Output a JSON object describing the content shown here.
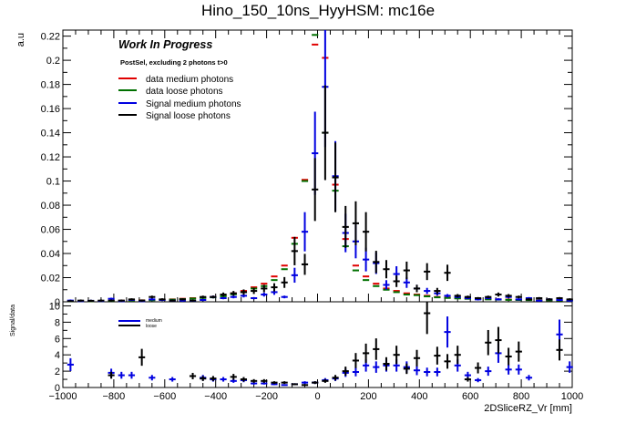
{
  "chart_data": [
    {
      "type": "scatter",
      "title": "Hino_150_10ns_HyyHSM: mc16e",
      "ylabel": "a.u",
      "xlim": [
        -1000,
        1000
      ],
      "ylim": [
        0,
        0.225
      ],
      "y_ticks": [
        "0",
        "0.02",
        "0.04",
        "0.06",
        "0.08",
        "0.1",
        "0.12",
        "0.14",
        "0.16",
        "0.18",
        "0.2",
        "0.22"
      ],
      "annotation_main": "Work In Progress",
      "annotation_sub": "PostSel, excluding 2 photons t>0",
      "legend_placement": "top-left",
      "x": [
        -970,
        -930,
        -890,
        -850,
        -810,
        -770,
        -730,
        -690,
        -650,
        -610,
        -570,
        -530,
        -490,
        -450,
        -410,
        -370,
        -330,
        -290,
        -250,
        -210,
        -170,
        -130,
        -90,
        -50,
        -10,
        30,
        70,
        110,
        150,
        190,
        230,
        270,
        310,
        350,
        390,
        430,
        470,
        510,
        550,
        590,
        630,
        670,
        710,
        750,
        790,
        830,
        870,
        910,
        950,
        990
      ],
      "series": [
        {
          "name": "data medium photons",
          "color": "#e00000",
          "y": [
            0.0005,
            0.0005,
            0.0006,
            0.0007,
            0.0008,
            0.0009,
            0.001,
            0.0012,
            0.0015,
            0.0018,
            0.002,
            0.0025,
            0.003,
            0.0035,
            0.004,
            0.005,
            0.007,
            0.009,
            0.012,
            0.015,
            0.021,
            0.03,
            0.053,
            0.101,
            0.213,
            0.202,
            0.097,
            0.052,
            0.03,
            0.021,
            0.015,
            0.011,
            0.009,
            0.007,
            0.006,
            0.005,
            0.004,
            0.0035,
            0.003,
            0.0028,
            0.0025,
            0.0022,
            0.002,
            0.0018,
            0.0016,
            0.0015,
            0.0014,
            0.0013,
            0.0012,
            0.0011
          ]
        },
        {
          "name": "data loose photons",
          "color": "#007000",
          "y": [
            0.0004,
            0.0005,
            0.0005,
            0.0006,
            0.0007,
            0.0008,
            0.0009,
            0.001,
            0.0013,
            0.0015,
            0.0018,
            0.0022,
            0.0027,
            0.0032,
            0.0037,
            0.0046,
            0.0062,
            0.008,
            0.011,
            0.013,
            0.018,
            0.027,
            0.048,
            0.1,
            0.221,
            0.14,
            0.092,
            0.046,
            0.026,
            0.018,
            0.013,
            0.01,
            0.008,
            0.006,
            0.0055,
            0.0045,
            0.0037,
            0.0032,
            0.0028,
            0.0025,
            0.0023,
            0.002,
            0.0018,
            0.0016,
            0.0015,
            0.0014,
            0.0013,
            0.0012,
            0.0011,
            0.001
          ]
        },
        {
          "name": "Signal medium photons",
          "color": "#0000e0",
          "y": [
            0.001,
            0.0005,
            0.0008,
            0.0006,
            0.0025,
            0.0005,
            0.0015,
            0.0005,
            0.002,
            0.0015,
            0.001,
            0.001,
            0.0008,
            0.0015,
            0.004,
            0.003,
            0.004,
            0.005,
            0.003,
            0.006,
            0.008,
            0.004,
            0.022,
            0.058,
            0.123,
            0.178,
            0.104,
            0.057,
            0.05,
            0.035,
            0.032,
            0.014,
            0.023,
            0.016,
            0.011,
            0.009,
            0.007,
            0.005,
            0.004,
            0.003,
            0.002,
            0.003,
            0.002,
            0.004,
            0.002,
            0.003,
            0.001,
            0.002,
            0.0015,
            0.001
          ]
        },
        {
          "name": "Signal loose photons",
          "color": "#000000",
          "y": [
            0.0005,
            0.001,
            0.0008,
            0.001,
            0.001,
            0.001,
            0.002,
            0.001,
            0.004,
            0.002,
            0.001,
            0.002,
            0.001,
            0.004,
            0.004,
            0.006,
            0.007,
            0.008,
            0.009,
            0.011,
            0.012,
            0.016,
            0.042,
            0.031,
            0.093,
            0.14,
            0.103,
            0.062,
            0.065,
            0.058,
            0.033,
            0.027,
            0.017,
            0.026,
            0.011,
            0.025,
            0.009,
            0.024,
            0.005,
            0.004,
            0.003,
            0.004,
            0.006,
            0.005,
            0.004,
            0.002,
            0.003,
            0.002,
            0.003,
            0.002
          ]
        }
      ]
    },
    {
      "type": "scatter",
      "ylabel": "Signal/data",
      "xlabel": "2DSliceRZ_Vr [mm]",
      "xlim": [
        -1000,
        1000
      ],
      "ylim": [
        0,
        10.5
      ],
      "x_ticks": [
        "−1000",
        "−800",
        "−600",
        "−400",
        "−200",
        "0",
        "200",
        "400",
        "600",
        "800",
        "1000"
      ],
      "y_ticks": [
        "0",
        "2",
        "4",
        "6",
        "8",
        "10"
      ],
      "legend_placement": "top-left",
      "x": [
        -970,
        -930,
        -890,
        -850,
        -810,
        -770,
        -730,
        -690,
        -650,
        -610,
        -570,
        -530,
        -490,
        -450,
        -410,
        -370,
        -330,
        -290,
        -250,
        -210,
        -170,
        -130,
        -90,
        -50,
        -10,
        30,
        70,
        110,
        150,
        190,
        230,
        270,
        310,
        350,
        390,
        430,
        470,
        510,
        550,
        590,
        630,
        670,
        710,
        750,
        790,
        830,
        870,
        910,
        950,
        990
      ],
      "series": [
        {
          "name": "medium",
          "color": "#0000e0",
          "y": [
            2.8,
            null,
            null,
            null,
            1.8,
            1.5,
            1.5,
            null,
            1.2,
            null,
            1.0,
            null,
            null,
            1.2,
            1.0,
            1.0,
            0.8,
            0.9,
            0.5,
            0.5,
            0.4,
            0.3,
            0.4,
            0.6,
            0.6,
            0.9,
            1.1,
            1.8,
            1.9,
            2.7,
            2.5,
            2.7,
            2.7,
            2.5,
            2.1,
            1.9,
            1.9,
            6.8,
            2.7,
            1.5,
            0.9,
            2.0,
            4.2,
            2.2,
            2.2,
            1.2,
            null,
            null,
            6.5,
            2.5
          ]
        },
        {
          "name": "loose",
          "color": "#000000",
          "y": [
            null,
            null,
            null,
            null,
            1.5,
            null,
            null,
            3.7,
            null,
            null,
            null,
            null,
            1.4,
            1.1,
            1.1,
            null,
            1.3,
            1.0,
            0.8,
            0.8,
            0.6,
            0.6,
            0.4,
            0.3,
            0.6,
            0.8,
            1.2,
            2.0,
            3.3,
            4.2,
            4.7,
            2.9,
            4.0,
            2.3,
            3.6,
            9.1,
            3.9,
            3.2,
            4.0,
            1.0,
            2.4,
            5.5,
            5.8,
            3.8,
            4.4,
            null,
            null,
            null,
            4.6,
            null
          ]
        }
      ]
    }
  ]
}
